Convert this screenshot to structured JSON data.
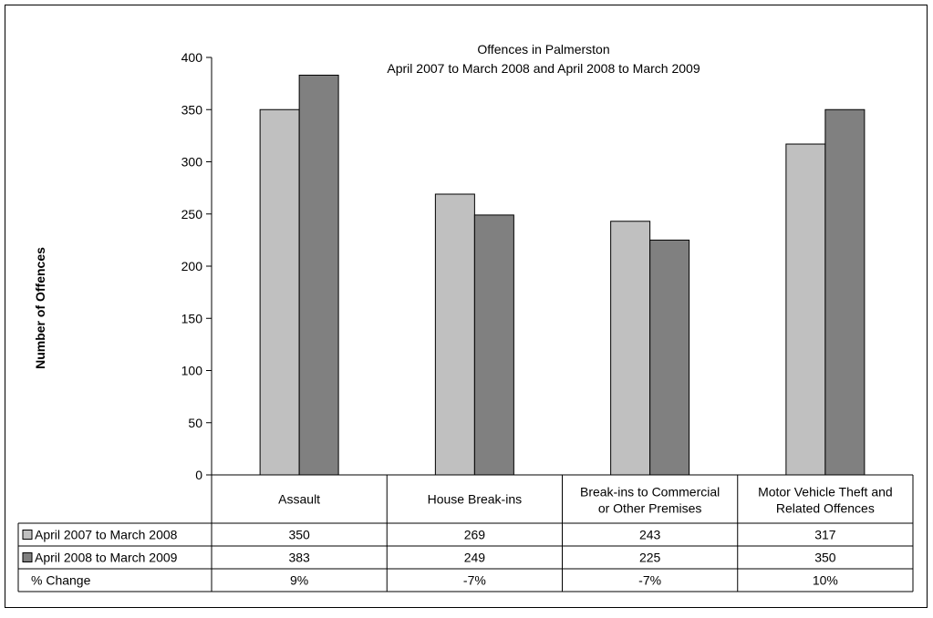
{
  "chart_data": {
    "type": "bar",
    "title": "Offences in Palmerston",
    "subtitle": "April 2007 to March 2008 and April 2008 to March 2009",
    "xlabel": "",
    "ylabel": "Number of Offences",
    "ylim": [
      0,
      400
    ],
    "yticks": [
      0,
      50,
      100,
      150,
      200,
      250,
      300,
      350,
      400
    ],
    "grid": false,
    "categories": [
      [
        "Assault"
      ],
      [
        "House Break-ins"
      ],
      [
        "Break-ins to Commercial",
        "or Other Premises"
      ],
      [
        "Motor Vehicle Theft and",
        "Related Offences"
      ]
    ],
    "series": [
      {
        "name": "April 2007 to March 2008",
        "color": "#c0c0c0",
        "values": [
          350,
          269,
          243,
          317
        ]
      },
      {
        "name": "April 2008 to March 2009",
        "color": "#808080",
        "values": [
          383,
          249,
          225,
          350
        ]
      }
    ],
    "data_table": {
      "extra_row_label": "% Change",
      "extra_row_values": [
        "9%",
        "-7%",
        "-7%",
        "10%"
      ]
    }
  }
}
